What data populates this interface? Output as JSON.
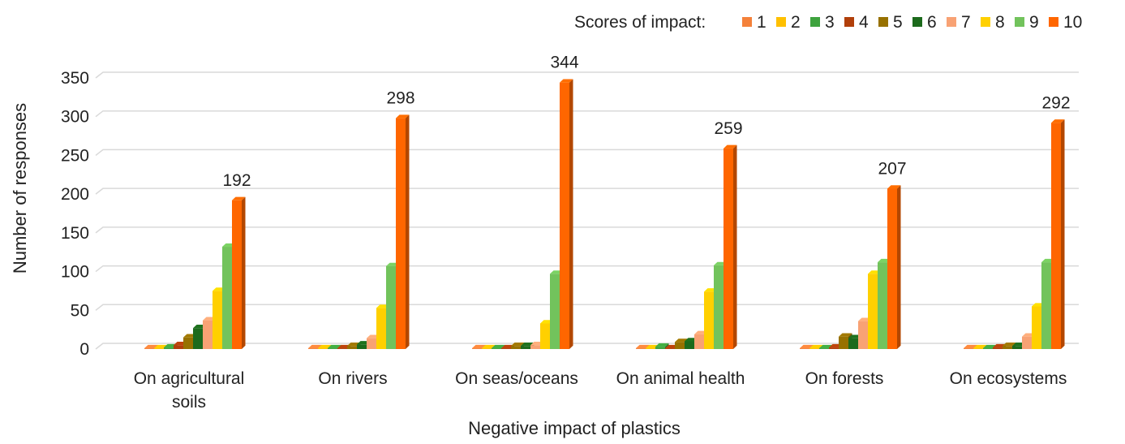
{
  "chart_data": {
    "type": "bar",
    "title": "",
    "xlabel": "Negative impact of plastics",
    "ylabel": "Number of responses",
    "ylim": [
      0,
      350
    ],
    "yticks": [
      0,
      50,
      100,
      150,
      200,
      250,
      300,
      350
    ],
    "grid": true,
    "legend_title": "Scores of impact:",
    "legend_position": "top",
    "categories": [
      "On agricultural soils",
      "On rivers",
      "On seas/oceans",
      "On animal health",
      "On forests",
      "On ecosystems"
    ],
    "series": [
      {
        "name": "1",
        "color": "#f4813a",
        "values": [
          1,
          1,
          1,
          1,
          1,
          1
        ]
      },
      {
        "name": "2",
        "color": "#ffc000",
        "values": [
          1,
          1,
          1,
          1,
          1,
          1
        ]
      },
      {
        "name": "3",
        "color": "#3ea33e",
        "values": [
          2,
          1,
          1,
          3,
          1,
          1
        ]
      },
      {
        "name": "4",
        "color": "#b13f0a",
        "values": [
          5,
          1,
          1,
          1,
          2,
          2
        ]
      },
      {
        "name": "5",
        "color": "#977100",
        "values": [
          15,
          4,
          4,
          9,
          16,
          4
        ]
      },
      {
        "name": "6",
        "color": "#1c6a1c",
        "values": [
          27,
          6,
          4,
          10,
          14,
          4
        ]
      },
      {
        "name": "7",
        "color": "#f8a274",
        "values": [
          37,
          14,
          5,
          19,
          36,
          16
        ]
      },
      {
        "name": "8",
        "color": "#ffd000",
        "values": [
          75,
          53,
          33,
          74,
          97,
          55
        ]
      },
      {
        "name": "9",
        "color": "#72c35c",
        "values": [
          132,
          107,
          97,
          108,
          112,
          112
        ]
      },
      {
        "name": "10",
        "color": "#ff6600",
        "values": [
          192,
          298,
          344,
          259,
          207,
          292
        ]
      }
    ],
    "data_labels": {
      "series": "10",
      "values": [
        "192",
        "298",
        "344",
        "259",
        "207",
        "292"
      ]
    }
  }
}
